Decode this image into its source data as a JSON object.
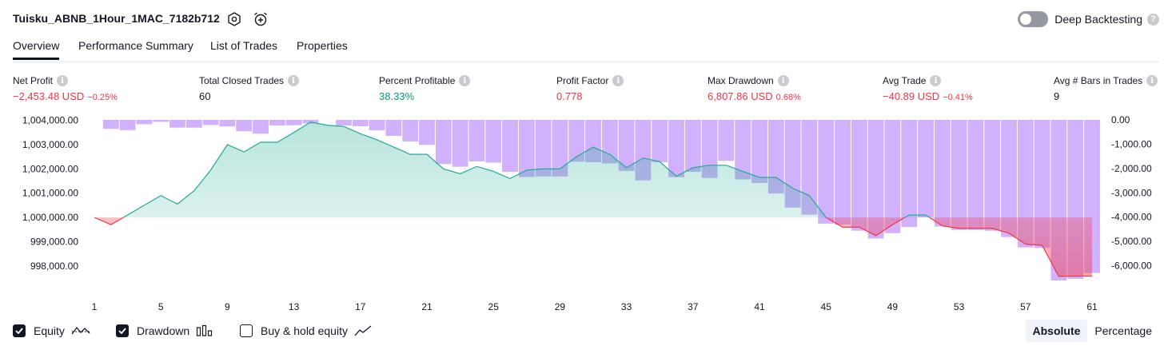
{
  "header": {
    "title": "Tuisku_ABNB_1Hour_1MAC_7182b712",
    "icons": [
      "gear-icon",
      "alarm-add-icon"
    ],
    "deep_backtesting_label": "Deep Backtesting",
    "deep_backtesting_enabled": false,
    "help": "?"
  },
  "tabs": [
    {
      "label": "Overview",
      "active": true
    },
    {
      "label": "Performance Summary",
      "active": false
    },
    {
      "label": "List of Trades",
      "active": false
    },
    {
      "label": "Properties",
      "active": false
    }
  ],
  "metrics": [
    {
      "label": "Net Profit",
      "value": "−2,453.48 USD",
      "pct": "−0.25%",
      "tone": "neg"
    },
    {
      "label": "Total Closed Trades",
      "value": "60",
      "pct": "",
      "tone": "neu"
    },
    {
      "label": "Percent Profitable",
      "value": "38.33%",
      "pct": "",
      "tone": "pos"
    },
    {
      "label": "Profit Factor",
      "value": "0.778",
      "pct": "",
      "tone": "neg"
    },
    {
      "label": "Max Drawdown",
      "value": "6,807.86 USD",
      "pct": "0.68%",
      "tone": "neg"
    },
    {
      "label": "Avg Trade",
      "value": "−40.89 USD",
      "pct": "−0.41%",
      "tone": "neg"
    },
    {
      "label": "Avg # Bars in Trades",
      "value": "9",
      "pct": "",
      "tone": "neu"
    }
  ],
  "info_icon_glyph": "i",
  "chart_data": {
    "type": "area",
    "x": [
      1,
      2,
      3,
      4,
      5,
      6,
      7,
      8,
      9,
      10,
      11,
      12,
      13,
      14,
      15,
      16,
      17,
      18,
      19,
      20,
      21,
      22,
      23,
      24,
      25,
      26,
      27,
      28,
      29,
      30,
      31,
      32,
      33,
      34,
      35,
      36,
      37,
      38,
      39,
      40,
      41,
      42,
      43,
      44,
      45,
      46,
      47,
      48,
      49,
      50,
      51,
      52,
      53,
      54,
      55,
      56,
      57,
      58,
      59,
      60,
      61
    ],
    "x_tick_labels": [
      "1",
      "5",
      "9",
      "13",
      "17",
      "21",
      "25",
      "29",
      "33",
      "37",
      "41",
      "45",
      "49",
      "53",
      "57",
      "61"
    ],
    "left_axis": {
      "ticks": [
        "1,004,000.00",
        "1,003,000.00",
        "1,002,000.00",
        "1,001,000.00",
        "1,000,000.00",
        "999,000.00",
        "998,000.00"
      ],
      "range": [
        997500,
        1004120
      ]
    },
    "right_axis": {
      "ticks": [
        "0.00",
        "-1,000.00",
        "-2,000.00",
        "-3,000.00",
        "-4,000.00",
        "-5,000.00",
        "-6,000.00"
      ],
      "range": [
        -7200,
        0
      ]
    },
    "baseline": 1000000,
    "series": [
      {
        "name": "Equity",
        "color_up": "#22ab94",
        "color_down": "#f23645",
        "values": [
          1000000,
          999700,
          1000100,
          1000500,
          1000900,
          1000550,
          1001100,
          1001950,
          1003000,
          1002700,
          1003100,
          1003100,
          1003500,
          1003930,
          1003800,
          1003750,
          1003450,
          1003200,
          1002900,
          1002600,
          1002600,
          1002000,
          1001800,
          1002100,
          1001900,
          1001600,
          1001950,
          1002000,
          1002000,
          1002500,
          1002900,
          1002600,
          1002050,
          1002450,
          1002300,
          1001700,
          1002050,
          1002150,
          1002150,
          1001900,
          1001650,
          1001650,
          1001200,
          1000900,
          1000000,
          999600,
          999600,
          999250,
          999700,
          1000100,
          1000100,
          999650,
          999550,
          999550,
          999550,
          999350,
          998900,
          998850,
          997570,
          997580,
          997580
        ]
      },
      {
        "name": "Drawdown",
        "color": "#d1b1fb",
        "values": [
          0,
          -370,
          -420,
          -180,
          -80,
          -320,
          -320,
          -210,
          -270,
          -470,
          -570,
          -230,
          -220,
          -150,
          0,
          -230,
          -260,
          -430,
          -660,
          -890,
          -1030,
          -1820,
          -1930,
          -1710,
          -1760,
          -2140,
          -2350,
          -2330,
          -2330,
          -1720,
          -1740,
          -1790,
          -2100,
          -2490,
          -1740,
          -2360,
          -2140,
          -2390,
          -1690,
          -2450,
          -2600,
          -3030,
          -3610,
          -3900,
          -4270,
          -4310,
          -4560,
          -4880,
          -4660,
          -4410,
          -4010,
          -4390,
          -4530,
          -4530,
          -4560,
          -4820,
          -5250,
          -5270,
          -6610,
          -6540,
          -6300
        ]
      }
    ],
    "legend": [
      {
        "label": "Equity",
        "checked": true,
        "icon": "equity-icon"
      },
      {
        "label": "Drawdown",
        "checked": true,
        "icon": "drawdown-icon"
      },
      {
        "label": "Buy & hold equity",
        "checked": false,
        "icon": "buy-hold-icon"
      }
    ]
  },
  "view_toggle": {
    "options": [
      "Absolute",
      "Percentage"
    ],
    "selected": "Absolute"
  }
}
